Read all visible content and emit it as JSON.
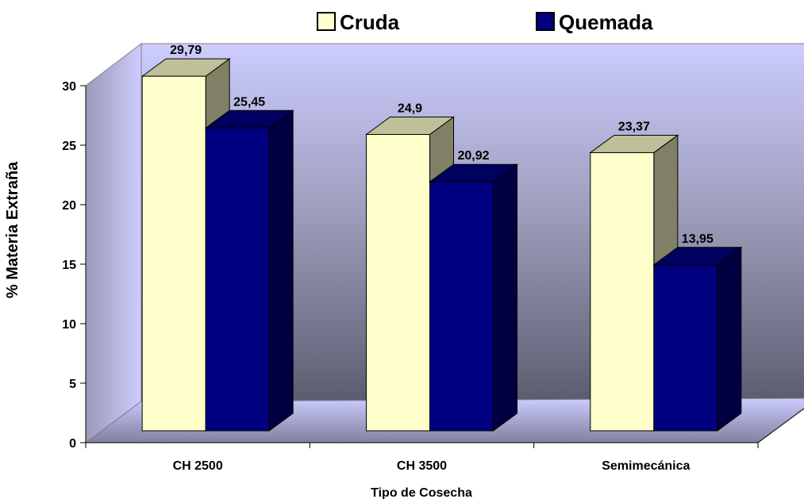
{
  "chart_data": {
    "type": "bar3d",
    "categories": [
      "CH 2500",
      "CH 3500",
      "Semimecánica"
    ],
    "series": [
      {
        "name": "Cruda",
        "color": "#ffffcc",
        "values": [
          29.79,
          24.9,
          23.37
        ],
        "value_labels": [
          "29,79",
          "24,9",
          "23,37"
        ]
      },
      {
        "name": "Quemada",
        "color": "#000080",
        "values": [
          25.45,
          20.92,
          13.95
        ],
        "value_labels": [
          "25,45",
          "20,92",
          "13,95"
        ]
      }
    ],
    "ylim": [
      0,
      30
    ],
    "yticks": [
      0,
      5,
      10,
      15,
      20,
      25,
      30
    ],
    "xlabel": "Tipo de Cosecha",
    "ylabel": "% Materia Extraña",
    "legend": "top"
  }
}
